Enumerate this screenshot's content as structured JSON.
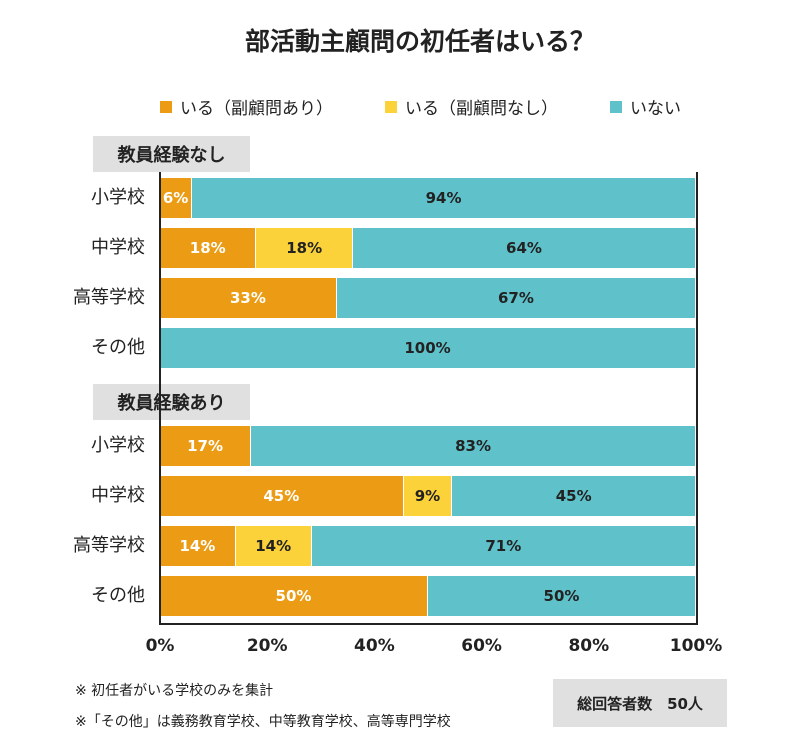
{
  "chart_data": {
    "type": "bar",
    "orientation": "horizontal",
    "stacked": true,
    "title": "部活動主顧問の初任者はいる？",
    "legend_placement": "top",
    "series": [
      {
        "name": "いる（副顧問あり）",
        "color": "#ec9c14"
      },
      {
        "name": "いる（副顧問なし）",
        "color": "#fbd23a"
      },
      {
        "name": "いない",
        "color": "#5fc2cb"
      }
    ],
    "xlim": [
      0,
      100
    ],
    "x_ticks": [
      "0%",
      "20%",
      "40%",
      "60%",
      "80%",
      "100%"
    ],
    "groups": [
      {
        "label": "教員経験なし",
        "rows": [
          {
            "category": "小学校",
            "values": [
              6,
              0,
              94
            ],
            "labels": [
              "6%",
              "",
              "94%"
            ]
          },
          {
            "category": "中学校",
            "values": [
              18,
              18,
              64
            ],
            "labels": [
              "18%",
              "18%",
              "64%"
            ]
          },
          {
            "category": "高等学校",
            "values": [
              33,
              0,
              67
            ],
            "labels": [
              "33%",
              "",
              "67%"
            ]
          },
          {
            "category": "その他",
            "values": [
              0,
              0,
              100
            ],
            "labels": [
              "",
              "",
              "100%"
            ]
          }
        ]
      },
      {
        "label": "教員経験あり",
        "rows": [
          {
            "category": "小学校",
            "values": [
              17,
              0,
              83
            ],
            "labels": [
              "17%",
              "",
              "83%"
            ]
          },
          {
            "category": "中学校",
            "values": [
              45,
              9,
              45
            ],
            "labels": [
              "45%",
              "9%",
              "45%"
            ]
          },
          {
            "category": "高等学校",
            "values": [
              14,
              14,
              71
            ],
            "labels": [
              "14%",
              "14%",
              "71%"
            ]
          },
          {
            "category": "その他",
            "values": [
              50,
              0,
              50
            ],
            "labels": [
              "50%",
              "",
              "50%"
            ]
          }
        ]
      }
    ]
  },
  "notes": [
    "※ 初任者がいる学校のみを集計",
    "※「その他」は義務教育学校、中等教育学校、高等専門学校"
  ],
  "respondents": "総回答者数　50人"
}
